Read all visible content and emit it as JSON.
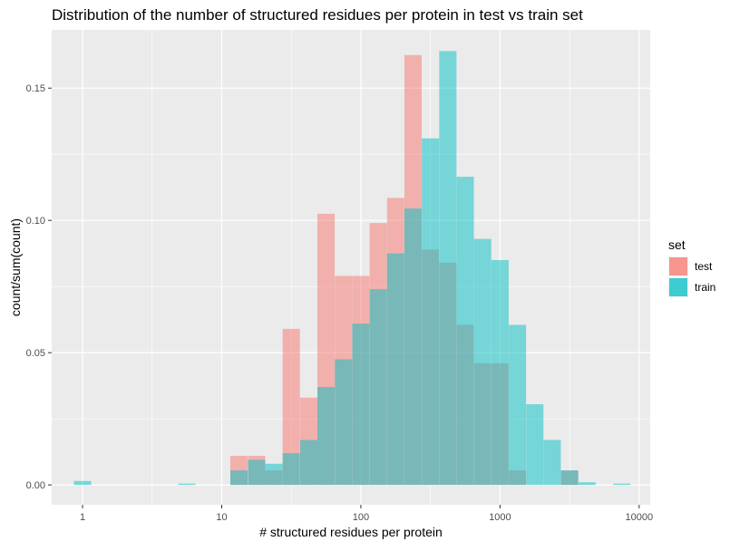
{
  "chart_data": {
    "type": "bar",
    "title": "Distribution of the number of structured residues per protein in test vs train set",
    "xlabel": "# structured residues per protein",
    "ylabel": "count/sum(count)",
    "x_scale": "log10",
    "xlim": [
      0.6,
      12000
    ],
    "ylim": [
      -0.0075,
      0.172
    ],
    "x_ticks": [
      1,
      10,
      100,
      1000,
      10000
    ],
    "x_tick_labels": [
      "1",
      "10",
      "100",
      "1000",
      "10000"
    ],
    "y_ticks": [
      0.0,
      0.05,
      0.1,
      0.15
    ],
    "y_tick_labels": [
      "0.00",
      "0.05",
      "0.10",
      "0.15"
    ],
    "grid": true,
    "legend": {
      "title": "set",
      "position": "right"
    },
    "bin_centers": [
      1.0,
      1.33,
      1.78,
      2.37,
      3.16,
      4.22,
      5.62,
      7.5,
      10.0,
      13.3,
      17.8,
      23.7,
      31.6,
      42.2,
      56.2,
      75.0,
      100.0,
      133.4,
      177.8,
      237.1,
      316.2,
      421.7,
      562.3,
      749.9,
      1000.0,
      1333.5,
      1778.3,
      2371.4,
      3162.3,
      4217.0,
      5623.4,
      7498.9
    ],
    "series": [
      {
        "name": "test",
        "color": "#F8766D",
        "values": [
          0,
          0,
          0,
          0,
          0,
          0,
          0,
          0,
          0,
          0.011,
          0.011,
          0.0055,
          0.059,
          0.033,
          0.1025,
          0.079,
          0.079,
          0.099,
          0.1085,
          0.1625,
          0.089,
          0.084,
          0.0605,
          0.046,
          0.046,
          0.0055,
          0,
          0,
          0.0055,
          0,
          0,
          0
        ]
      },
      {
        "name": "train",
        "color": "#00BFC4",
        "values": [
          0.0015,
          0,
          0,
          0,
          0,
          0,
          0.0005,
          0,
          0,
          0.0055,
          0.0095,
          0.008,
          0.012,
          0.017,
          0.037,
          0.0475,
          0.061,
          0.074,
          0.0875,
          0.1045,
          0.131,
          0.164,
          0.1165,
          0.093,
          0.085,
          0.0605,
          0.0305,
          0.017,
          0.0055,
          0.001,
          0,
          0.0005
        ]
      }
    ]
  }
}
